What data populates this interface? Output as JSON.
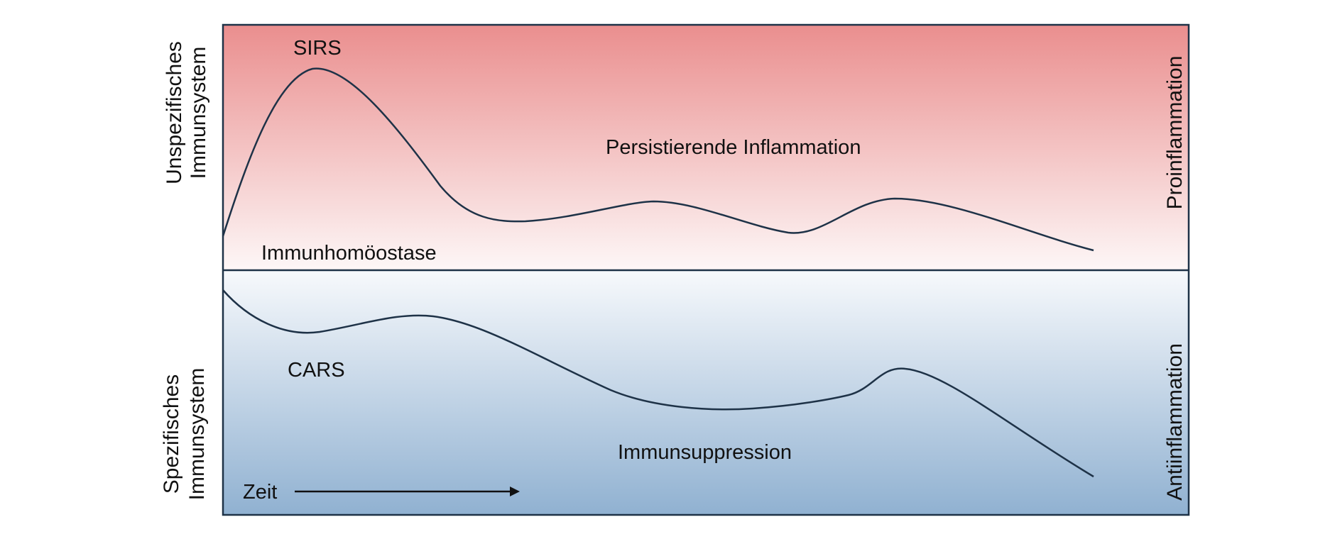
{
  "colors": {
    "top_start": "#ea8e8e",
    "top_end": "#fdf7f7",
    "bottom_start": "#f7f9fc",
    "bottom_end": "#90b1d1",
    "frame": "#1e3247",
    "curve": "#1e3247"
  },
  "labels": {
    "sirs": "SIRS",
    "persistent": "Persistierende Inflammation",
    "homeostasis": "Immunhomöostase",
    "cars": "CARS",
    "suppression": "Immunsuppression",
    "time": "Zeit"
  },
  "left_axis": {
    "top_line1": "Unspezifisches",
    "top_line2": "Immunsystem",
    "bottom_line1": "Spezifisches",
    "bottom_line2": "Immunsystem"
  },
  "right_axis": {
    "top": "Proinflammation",
    "bottom": "Antiinflammation"
  }
}
